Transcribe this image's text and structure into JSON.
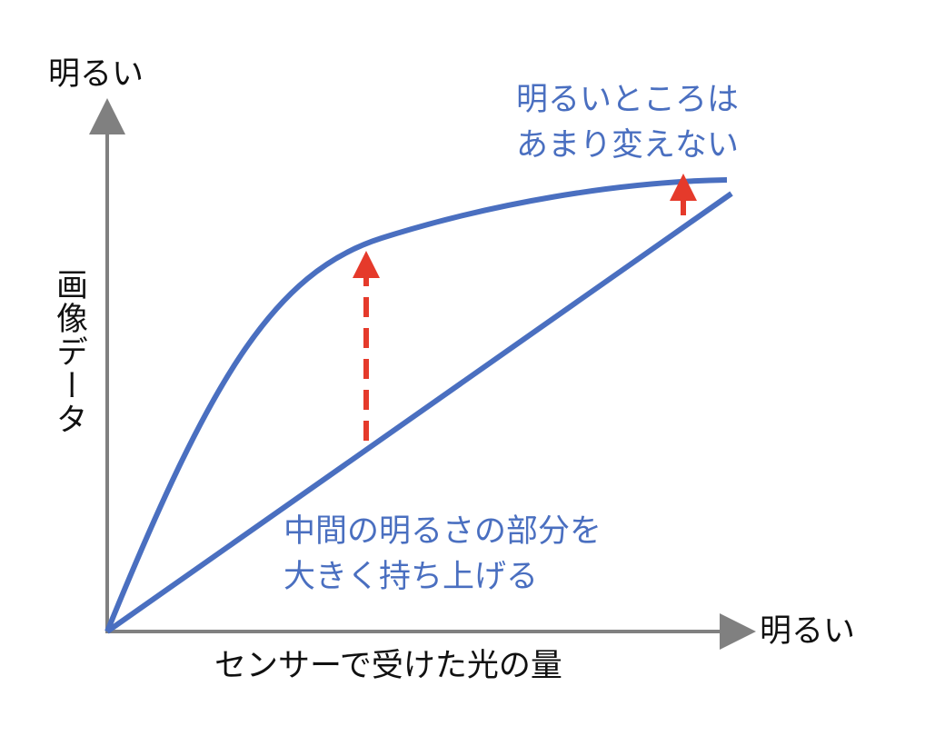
{
  "axes": {
    "y_label_top": "明るい",
    "y_label": "画像データ",
    "x_label_right": "明るい",
    "x_label": "センサーで受けた光の量"
  },
  "annotations": {
    "bright": [
      "明るいところは",
      "あまり変えない"
    ],
    "middle": [
      "中間の明るさの部分を",
      "大きく持ち上げる"
    ]
  }
}
